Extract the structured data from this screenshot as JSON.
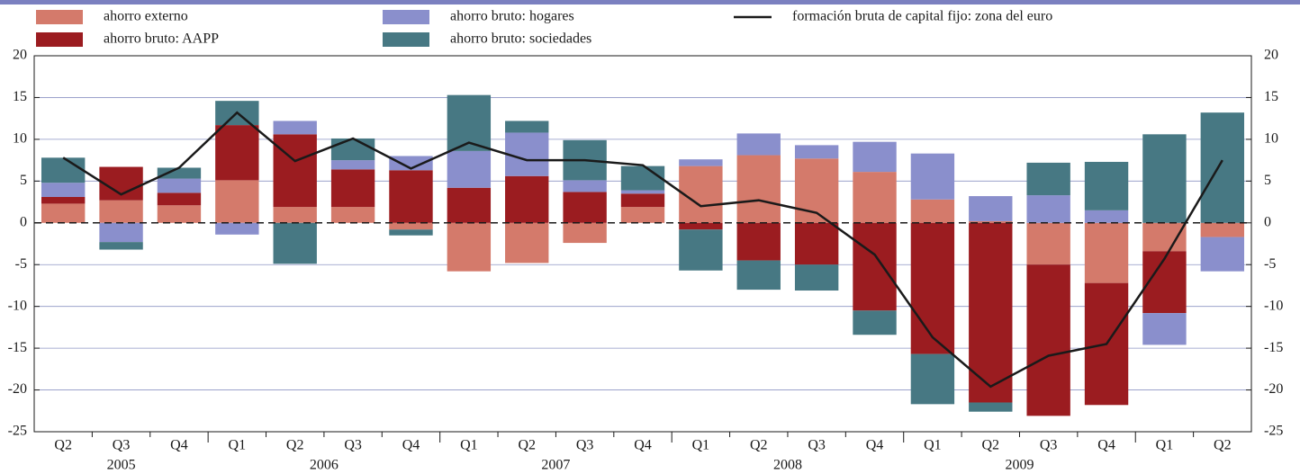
{
  "chart_data": {
    "type": "bar",
    "stacked": true,
    "categories": [
      "Q2",
      "Q3",
      "Q4",
      "Q1",
      "Q2",
      "Q3",
      "Q4",
      "Q1",
      "Q2",
      "Q3",
      "Q4",
      "Q1",
      "Q2",
      "Q3",
      "Q4",
      "Q1",
      "Q2",
      "Q3",
      "Q4",
      "Q1",
      "Q2"
    ],
    "years": [
      "2005",
      "2005",
      "2005",
      "2006",
      "2006",
      "2006",
      "2006",
      "2007",
      "2007",
      "2007",
      "2007",
      "2008",
      "2008",
      "2008",
      "2008",
      "2009",
      "2009",
      "2009",
      "2009",
      null,
      null
    ],
    "series": [
      {
        "name": "ahorro externo",
        "type": "bar",
        "color": "#d47a6b",
        "values": [
          2.3,
          2.7,
          2.1,
          5.1,
          1.9,
          1.9,
          -0.8,
          -5.8,
          -4.8,
          -2.4,
          1.9,
          6.8,
          8.1,
          7.7,
          6.1,
          2.8,
          0.2,
          -5.0,
          -7.2,
          -3.4,
          -1.7
        ]
      },
      {
        "name": "ahorro bruto: AAPP",
        "type": "bar",
        "color": "#9b1c20",
        "values": [
          0.8,
          4.0,
          1.5,
          6.6,
          8.7,
          4.5,
          6.3,
          4.2,
          5.6,
          3.7,
          1.6,
          -0.8,
          -4.5,
          -5.0,
          -10.5,
          -15.7,
          -21.5,
          -18.1,
          -14.6,
          -7.4,
          0
        ]
      },
      {
        "name": "ahorro bruto: hogares",
        "type": "bar",
        "color": "#8a8fcc",
        "values": [
          1.7,
          -2.3,
          1.7,
          -1.4,
          1.6,
          1.1,
          1.7,
          4.4,
          5.2,
          1.4,
          0.4,
          0.8,
          2.6,
          1.6,
          3.6,
          5.5,
          3.0,
          3.3,
          1.5,
          -3.8,
          -4.1
        ]
      },
      {
        "name": "ahorro bruto: sociedades",
        "type": "bar",
        "color": "#477883",
        "values": [
          3.0,
          -0.9,
          1.3,
          2.9,
          -4.9,
          2.6,
          -0.7,
          6.7,
          1.4,
          4.8,
          2.9,
          -4.9,
          -3.5,
          -3.1,
          -2.9,
          -6.0,
          -1.1,
          3.9,
          5.8,
          10.6,
          13.2
        ]
      },
      {
        "name": "formación bruta de capital fijo: zona del euro",
        "type": "line",
        "axis": "y2",
        "color": "#1a1a1a",
        "values": [
          7.8,
          3.4,
          6.6,
          13.2,
          7.4,
          10.1,
          6.5,
          9.6,
          7.5,
          7.5,
          6.9,
          2.0,
          2.7,
          1.2,
          -3.8,
          -13.7,
          -19.6,
          -15.9,
          -14.5,
          -4.3,
          7.5
        ]
      }
    ],
    "ylim": [
      -25,
      20
    ],
    "yticks": [
      -25,
      -20,
      -15,
      -10,
      -5,
      0,
      5,
      10,
      15,
      20
    ],
    "y2lim": [
      -25,
      20
    ],
    "y2ticks": [
      -25,
      -20,
      -15,
      -10,
      -5,
      0,
      5,
      10,
      15,
      20
    ],
    "grid": true
  }
}
